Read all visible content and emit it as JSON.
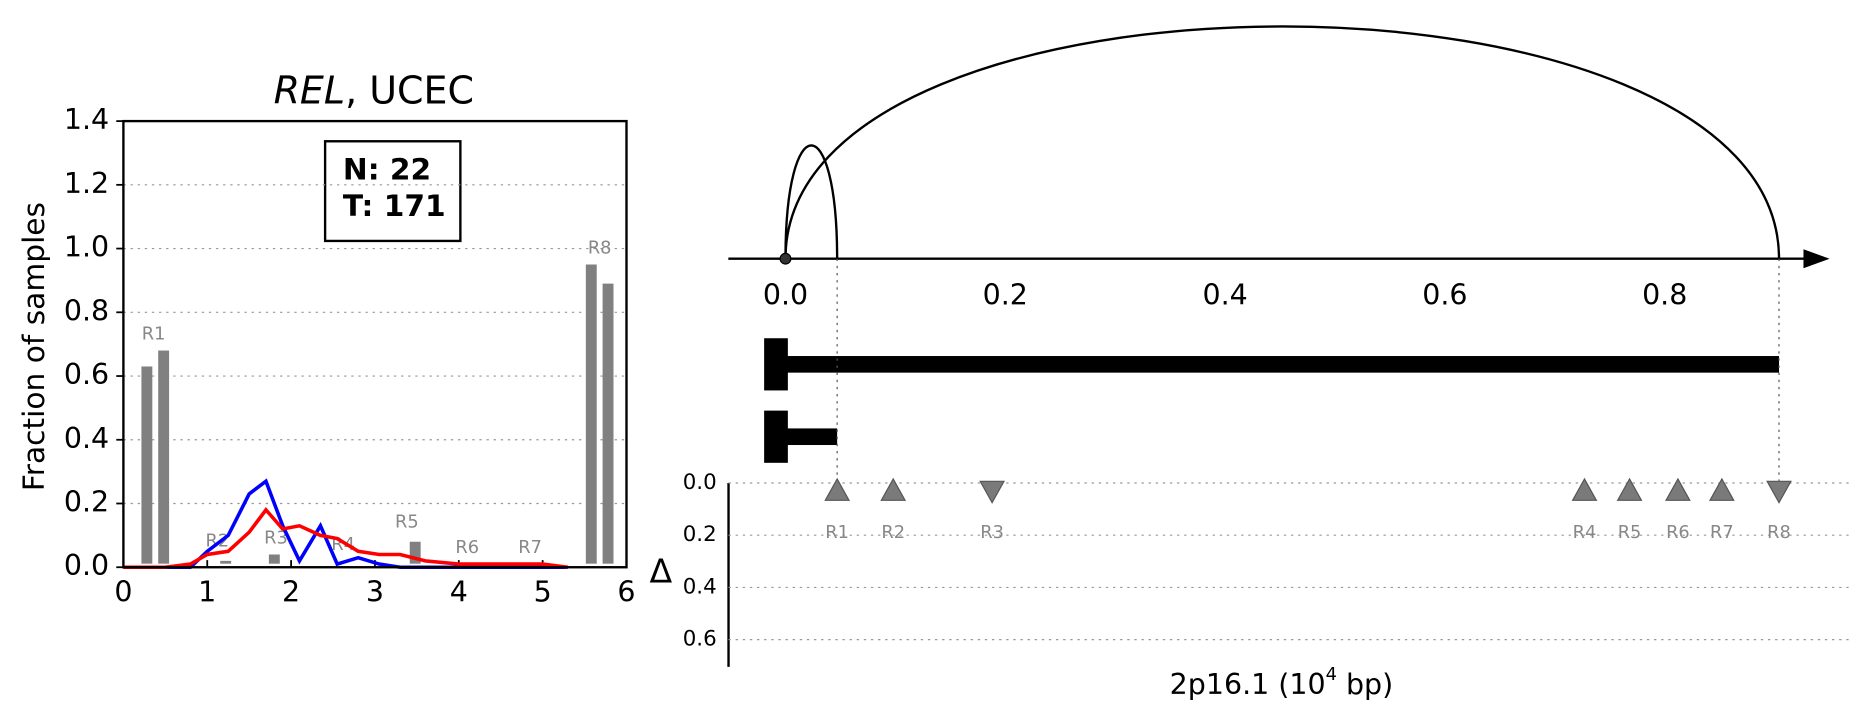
{
  "chart_data": [
    {
      "type": "bar_line",
      "title_gene": "REL",
      "title_rest": ", UCEC",
      "ylabel": "Fraction of samples",
      "xlim": [
        0,
        6
      ],
      "ylim": [
        0,
        1.4
      ],
      "xticks": [
        0,
        1,
        2,
        3,
        4,
        5,
        6
      ],
      "yticks": [
        {
          "value": 0,
          "label": "0.0"
        },
        {
          "value": 0.2,
          "label": "0.2"
        },
        {
          "value": 0.4,
          "label": "0.4"
        },
        {
          "value": 0.6,
          "label": "0.6"
        },
        {
          "value": 0.8,
          "label": "0.8"
        },
        {
          "value": 1.0,
          "label": "1.0"
        },
        {
          "value": 1.2,
          "label": "1.2"
        },
        {
          "value": 1.4,
          "label": "1.4"
        }
      ],
      "grid": true,
      "annotation": [
        "N: 22",
        "T: 171"
      ],
      "bars": {
        "color": "#808080",
        "x": [
          0.28,
          0.48,
          1.22,
          1.8,
          3.48,
          5.58,
          5.78
        ],
        "values": [
          0.63,
          0.68,
          0.02,
          0.04,
          0.08,
          0.95,
          0.89
        ]
      },
      "region_labels": {
        "names": [
          "R1",
          "R2",
          "R3",
          "R4",
          "R5",
          "R6",
          "R7",
          "R8"
        ],
        "x": [
          0.36,
          1.12,
          1.82,
          2.62,
          3.38,
          4.1,
          4.85,
          5.68
        ],
        "y": [
          0.73,
          0.08,
          0.09,
          0.07,
          0.14,
          0.06,
          0.06,
          1.0
        ]
      },
      "series": [
        {
          "color": "#0000ff",
          "x": [
            0,
            0.3,
            0.5,
            0.8,
            1.0,
            1.25,
            1.5,
            1.7,
            1.9,
            2.1,
            2.35,
            2.55,
            2.8,
            3.05,
            3.3,
            3.6,
            4,
            4.5,
            5,
            5.3
          ],
          "values": [
            0,
            0,
            0,
            0,
            0.05,
            0.1,
            0.23,
            0.27,
            0.13,
            0.02,
            0.13,
            0.01,
            0.03,
            0.01,
            0,
            0,
            0,
            0,
            0,
            0
          ]
        },
        {
          "color": "#ff0000",
          "x": [
            0,
            0.3,
            0.5,
            0.8,
            1.0,
            1.25,
            1.5,
            1.7,
            1.9,
            2.1,
            2.35,
            2.55,
            2.8,
            3.05,
            3.3,
            3.6,
            4,
            4.5,
            5,
            5.3
          ],
          "values": [
            0,
            0,
            0,
            0.01,
            0.04,
            0.05,
            0.11,
            0.18,
            0.12,
            0.13,
            0.1,
            0.09,
            0.05,
            0.04,
            0.04,
            0.02,
            0.01,
            0.01,
            0.01,
            0
          ]
        }
      ]
    },
    {
      "type": "arc",
      "xlabel_parts": [
        "2p16.1 (10",
        "4",
        " bp)"
      ],
      "xlim": [
        -0.052,
        0.95
      ],
      "xticks": [
        {
          "value": 0,
          "label": "0.0"
        },
        {
          "value": 0.2,
          "label": "0.2"
        },
        {
          "value": 0.4,
          "label": "0.4"
        },
        {
          "value": 0.6,
          "label": "0.6"
        },
        {
          "value": 0.8,
          "label": "0.8"
        }
      ],
      "arcs": [
        {
          "start": 0,
          "end": 0.047
        },
        {
          "start": 0,
          "end": 0.904
        }
      ],
      "transcripts": [
        {
          "start": 0,
          "end": 0.904
        },
        {
          "start": 0,
          "end": 0.047
        }
      ],
      "delta_label": "Δ",
      "delta_ylim": [
        0,
        0.7
      ],
      "delta_yticks": [
        {
          "value": 0,
          "label": "0.0"
        },
        {
          "value": 0.2,
          "label": "0.2"
        },
        {
          "value": 0.4,
          "label": "0.4"
        },
        {
          "value": 0.6,
          "label": "0.6"
        }
      ],
      "regions": {
        "names": [
          "R1",
          "R2",
          "R3",
          "R4",
          "R5",
          "R6",
          "R7",
          "R8"
        ],
        "x": [
          0.047,
          0.098,
          0.188,
          0.727,
          0.768,
          0.812,
          0.852,
          0.904
        ],
        "values": [
          0.03,
          0.03,
          0.03,
          0.03,
          0.03,
          0.03,
          0.03,
          0.03
        ],
        "direction": [
          "up",
          "up",
          "down",
          "up",
          "up",
          "up",
          "up",
          "down"
        ],
        "color": "#7a7a7a"
      }
    }
  ]
}
